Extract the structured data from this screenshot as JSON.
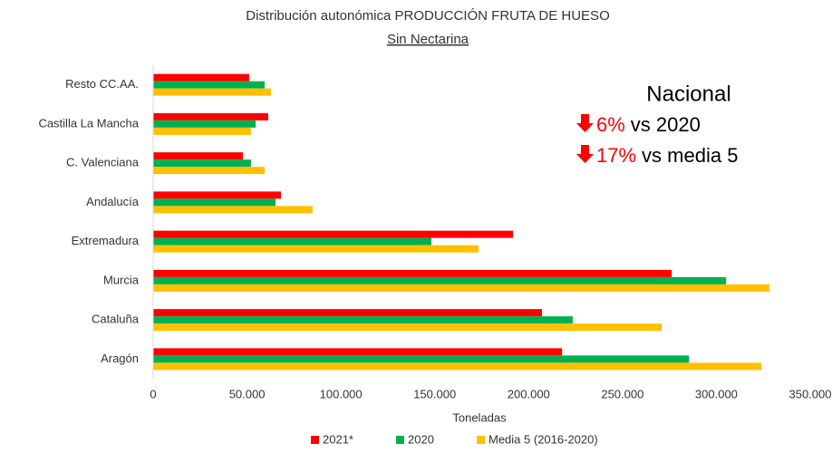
{
  "chart_data": {
    "type": "bar",
    "orientation": "horizontal",
    "title": "Distribución autonómica PRODUCCIÓN FRUTA DE HUESO",
    "subtitle": "Sin Nectarina",
    "x_label": "Toneladas",
    "categories": [
      "Resto CC.AA.",
      "Castilla La Mancha",
      "C. Valenciana",
      "Andalucía",
      "Extremadura",
      "Murcia",
      "Cataluña",
      "Aragón"
    ],
    "series": [
      {
        "name": "2021*",
        "color": "#ff0000",
        "values": [
          51200,
          61300,
          47800,
          68100,
          191700,
          276200,
          207100,
          217800
        ]
      },
      {
        "name": "2020",
        "color": "#00b050",
        "values": [
          59400,
          54600,
          52100,
          65200,
          148200,
          305200,
          223500,
          285400
        ]
      },
      {
        "name": "Media 5 (2016-2020)",
        "color": "#ffc000",
        "values": [
          62800,
          52100,
          59400,
          85000,
          173300,
          328300,
          270900,
          324000
        ]
      }
    ],
    "xlim": [
      0,
      350000
    ],
    "xticks": [
      0,
      {
        "value": 50000,
        "label": "50.000"
      },
      {
        "value": 100000,
        "label": "100.000"
      },
      {
        "value": 150000,
        "label": "150.000"
      },
      {
        "value": 200000,
        "label": "200.000"
      },
      {
        "value": 250000,
        "label": "250.000"
      },
      {
        "value": 300000,
        "label": "300.000"
      },
      {
        "value": 350000,
        "label": "350.000"
      }
    ],
    "legend": "bottom",
    "annotation": {
      "heading": "Nacional",
      "lines": [
        {
          "change": "6%",
          "text": "vs 2020"
        },
        {
          "change": "17%",
          "text": "vs media 5"
        }
      ]
    }
  }
}
